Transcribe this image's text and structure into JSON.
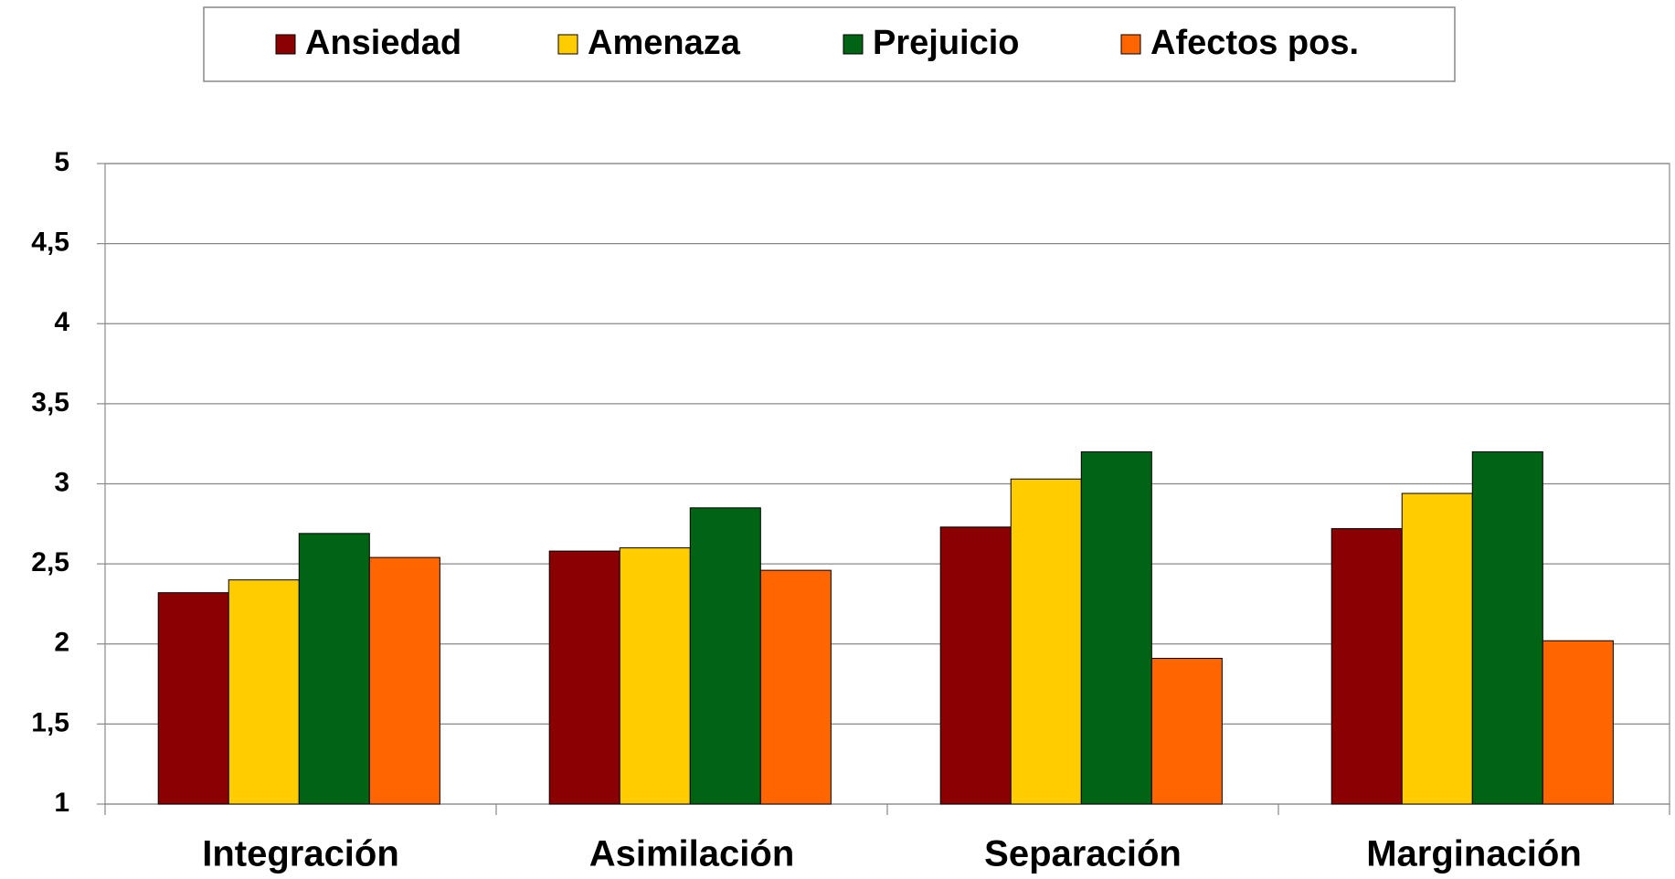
{
  "chart_data": {
    "type": "bar",
    "categories": [
      "Integración",
      "Asimilación",
      "Separación",
      "Marginación"
    ],
    "series": [
      {
        "name": "Ansiedad",
        "color": "#8b0000",
        "values": [
          2.32,
          2.58,
          2.73,
          2.72
        ]
      },
      {
        "name": "Amenaza",
        "color": "#ffcc00",
        "values": [
          2.4,
          2.6,
          3.03,
          2.94
        ]
      },
      {
        "name": "Prejuicio",
        "color": "#006414",
        "values": [
          2.69,
          2.85,
          3.2,
          3.2
        ]
      },
      {
        "name": "Afectos pos.",
        "color": "#ff6600",
        "values": [
          2.54,
          2.46,
          1.91,
          2.02
        ]
      }
    ],
    "ylim": [
      1,
      5
    ],
    "yticks": [
      1,
      {
        "value": 1.5,
        "label": "1,5"
      },
      2,
      {
        "value": 2.5,
        "label": "2,5"
      },
      3,
      {
        "value": 3.5,
        "label": "3,5"
      },
      4,
      {
        "value": 4.5,
        "label": "4,5"
      },
      5
    ],
    "grid": true,
    "legend": "top"
  }
}
